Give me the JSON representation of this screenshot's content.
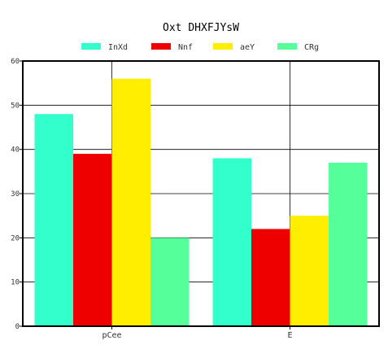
{
  "chart_data": {
    "type": "bar",
    "title": "Oxt DHXFJYsW",
    "categories": [
      "pCee",
      "E"
    ],
    "series": [
      {
        "name": "InXd",
        "color": "#33ffcc",
        "values": [
          48,
          38
        ]
      },
      {
        "name": "Nnf",
        "color": "#ee0000",
        "values": [
          39,
          22
        ]
      },
      {
        "name": "aeY",
        "color": "#ffee00",
        "values": [
          56,
          25
        ]
      },
      {
        "name": "CRg",
        "color": "#55ff99",
        "values": [
          20,
          37
        ]
      }
    ],
    "ylim": [
      0,
      60
    ],
    "yticks": [
      0,
      10,
      20,
      30,
      40,
      50,
      60
    ],
    "grid": true,
    "legend_position": "top-center"
  }
}
